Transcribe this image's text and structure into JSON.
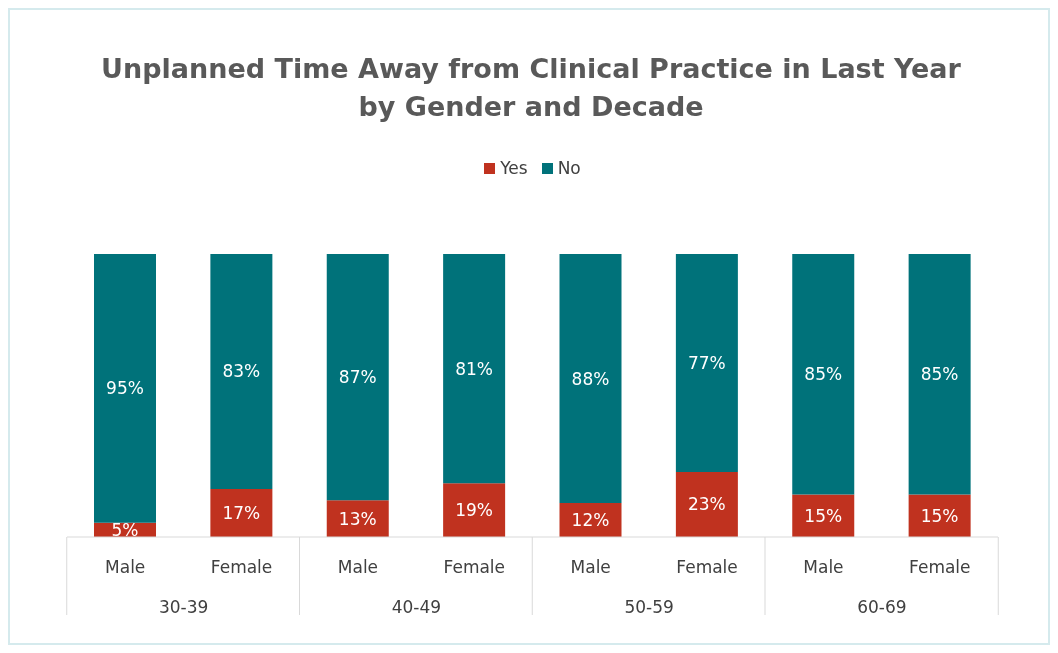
{
  "chart_data": {
    "type": "bar",
    "title": "Unplanned Time Away from Clinical Practice in Last Year\nby Gender and Decade",
    "categories": [
      "Male",
      "Female",
      "Male",
      "Female",
      "Male",
      "Female",
      "Male",
      "Female"
    ],
    "stacked": true,
    "legend": "top",
    "grid": false,
    "series": [
      {
        "name": "Yes",
        "color": "#c0321f",
        "values": [
          5,
          17,
          13,
          19,
          12,
          23,
          15,
          15
        ],
        "value_labels": [
          "5%",
          "17%",
          "13%",
          "19%",
          "12%",
          "23%",
          "15%",
          "15%"
        ]
      },
      {
        "name": "No",
        "color": "#00727a",
        "values": [
          95,
          83,
          87,
          81,
          88,
          77,
          85,
          85
        ],
        "value_labels": [
          "95%",
          "83%",
          "87%",
          "81%",
          "88%",
          "77%",
          "85%",
          "85%"
        ]
      }
    ],
    "annotations": [
      "30-39",
      "40-49",
      "50-59",
      "60-69"
    ]
  }
}
